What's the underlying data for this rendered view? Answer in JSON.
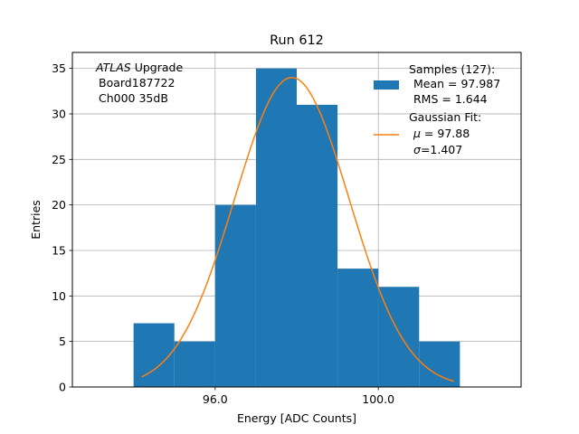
{
  "chart_data": {
    "type": "bar",
    "title": "Run 612",
    "xlabel": "Energy [ADC Counts]",
    "ylabel": "Entries",
    "xlim": [
      92.5,
      103.5
    ],
    "ylim": [
      0,
      36.75
    ],
    "xticks": [
      96.0,
      100.0
    ],
    "xtick_labels": [
      "96.0",
      "100.0"
    ],
    "yticks": [
      0,
      5,
      10,
      15,
      20,
      25,
      30,
      35
    ],
    "grid": true,
    "bins": [
      {
        "x0": 94.0,
        "x1": 95.0,
        "count": 7
      },
      {
        "x0": 95.0,
        "x1": 96.0,
        "count": 5
      },
      {
        "x0": 96.0,
        "x1": 97.0,
        "count": 20
      },
      {
        "x0": 97.0,
        "x1": 98.0,
        "count": 35
      },
      {
        "x0": 98.0,
        "x1": 99.0,
        "count": 31
      },
      {
        "x0": 99.0,
        "x1": 100.0,
        "count": 13
      },
      {
        "x0": 100.0,
        "x1": 101.0,
        "count": 11
      },
      {
        "x0": 101.0,
        "x1": 102.0,
        "count": 5
      }
    ],
    "fit": {
      "type": "gaussian",
      "mu": 97.88,
      "sigma": 1.407,
      "amplitude": 34.0,
      "x_range": [
        94.2,
        101.85
      ]
    },
    "colors": {
      "hist": "#1f77b4",
      "fit": "#ff7f0e",
      "grid": "#b0b0b0"
    },
    "legend_position": "upper right"
  },
  "annotation": {
    "line1_italic": "ATLAS",
    "line1_rest": " Upgrade",
    "line2": "Board187722",
    "line3": "Ch000 35dB"
  },
  "legend": {
    "samples_title": "Samples (127):",
    "samples_mean": "Mean = 97.987",
    "samples_rms": "RMS = 1.644",
    "fit_title": "Gaussian Fit:",
    "fit_mu_symbol": "μ",
    "fit_mu_value": " = 97.88",
    "fit_sigma_symbol": "σ",
    "fit_sigma_value": "=1.407"
  }
}
